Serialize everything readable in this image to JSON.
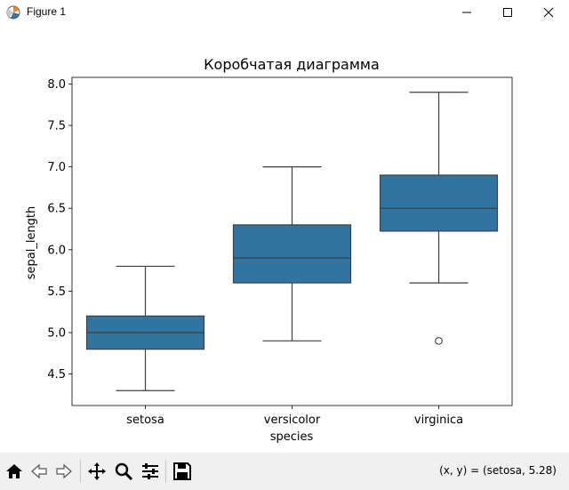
{
  "window": {
    "title": "Figure 1",
    "icon": "matplotlib-figure-icon"
  },
  "toolbar": {
    "buttons": [
      "home-icon",
      "back-icon",
      "forward-icon",
      "pan-icon",
      "zoom-icon",
      "configure-subplots-icon",
      "save-icon"
    ],
    "coords_text": "(x, y) = (setosa, 5.28)"
  },
  "chart_data": {
    "type": "box",
    "title": "Коробчатая диаграмма",
    "xlabel": "species",
    "ylabel": "sepal_length",
    "categories": [
      "setosa",
      "versicolor",
      "virginica"
    ],
    "boxes": [
      {
        "category": "setosa",
        "whisker_low": 4.3,
        "q1": 4.8,
        "median": 5.0,
        "q3": 5.2,
        "whisker_high": 5.8,
        "outliers": []
      },
      {
        "category": "versicolor",
        "whisker_low": 4.9,
        "q1": 5.6,
        "median": 5.9,
        "q3": 6.3,
        "whisker_high": 7.0,
        "outliers": []
      },
      {
        "category": "virginica",
        "whisker_low": 5.6,
        "q1": 6.225,
        "median": 6.5,
        "q3": 6.9,
        "whisker_high": 7.9,
        "outliers": [
          4.9
        ]
      }
    ],
    "yticks": [
      "4.5",
      "5.0",
      "5.5",
      "6.0",
      "6.5",
      "7.0",
      "7.5",
      "8.0"
    ],
    "ylim": [
      4.12,
      8.08
    ],
    "grid": false,
    "legend": "none",
    "box_color": "#3274a1",
    "line_color": "#3f3f3f"
  }
}
